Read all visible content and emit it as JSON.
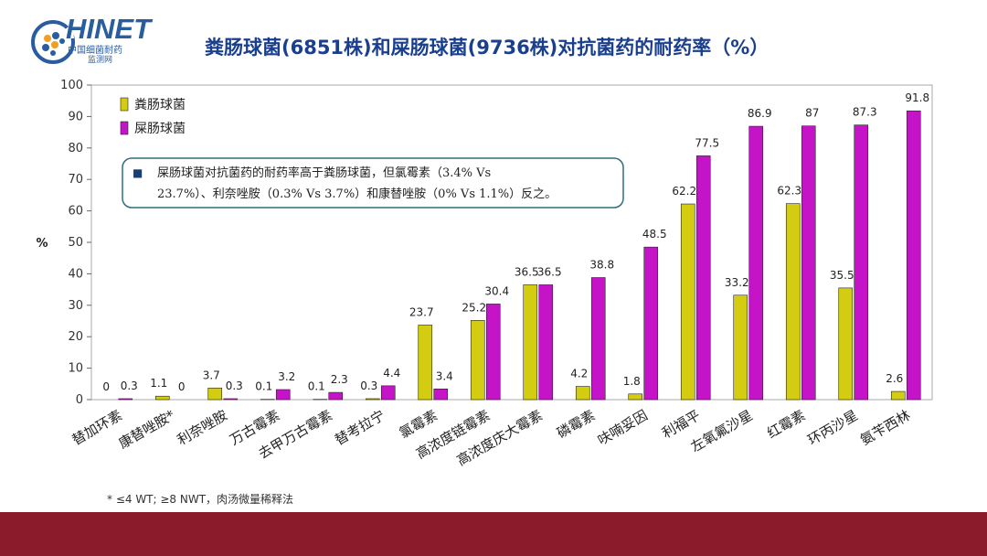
{
  "logo": {
    "text": "HINET",
    "sub1": "中国细菌耐药",
    "sub2": "监测网"
  },
  "colors": {
    "series1": "#d4cc10",
    "series2": "#c514c8",
    "frame": "#a9a9a9",
    "annotation_border": "#2d6e7e"
  },
  "chart_data": {
    "type": "bar",
    "title": "粪肠球菌(6851株)和屎肠球菌(9736株)对抗菌药的耐药率（%）",
    "ylabel": "%",
    "ylim": [
      0,
      100
    ],
    "yticks": [
      0,
      10,
      20,
      30,
      40,
      50,
      60,
      70,
      80,
      90,
      100
    ],
    "legend_position": "top-left",
    "categories": [
      "替加环素",
      "康替唑胺*",
      "利奈唑胺",
      "万古霉素",
      "去甲万古霉素",
      "替考拉宁",
      "氯霉素",
      "高浓度链霉素",
      "高浓度庆大霉素",
      "磷霉素",
      "呋喃妥因",
      "利福平",
      "左氧氟沙星",
      "红霉素",
      "环丙沙星",
      "氨苄西林"
    ],
    "series": [
      {
        "name": "粪肠球菌",
        "values": [
          0,
          1.1,
          3.7,
          0.1,
          0.1,
          0.3,
          23.7,
          25.2,
          36.5,
          4.2,
          1.8,
          62.2,
          33.2,
          62.3,
          35.5,
          2.6
        ],
        "labels": [
          "0",
          "1.1",
          "3.7",
          "0.1",
          "0.1",
          "0.3",
          "23.7",
          "25.2",
          "36.5",
          "4.2",
          "1.8",
          "62.2",
          "33.2",
          "62.3",
          "35.5",
          "2.6"
        ]
      },
      {
        "name": "屎肠球菌",
        "values": [
          0.3,
          0,
          0.3,
          3.2,
          2.3,
          4.4,
          3.4,
          30.4,
          36.5,
          38.8,
          48.5,
          77.5,
          86.9,
          87,
          87.3,
          91.8
        ],
        "labels": [
          "0.3",
          "0",
          "0.3",
          "3.2",
          "2.3",
          "4.4",
          "3.4",
          "30.4",
          "36.5",
          "38.8",
          "48.5",
          "77.5",
          "86.9",
          "87",
          "87.3",
          "91.8"
        ]
      }
    ],
    "annotation": {
      "bullet": "■",
      "line1": "屎肠球菌对抗菌药的耐药率高于粪肠球菌，但氯霉素（3.4% Vs",
      "line2": "23.7%）、利奈唑胺（0.3% Vs 3.7%）和康替唑胺（0% Vs 1.1%）反之。"
    }
  },
  "footnote": "* ≤4 WT; ≥8 NWT，肉汤微量稀释法"
}
